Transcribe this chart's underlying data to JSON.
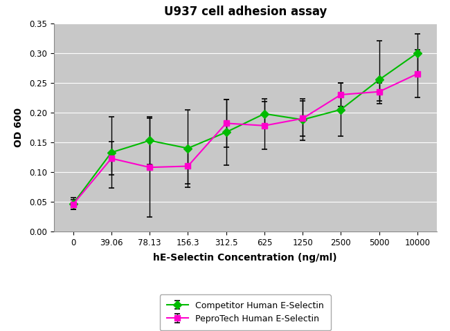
{
  "title": "U937 cell adhesion assay",
  "xlabel": "hE-Selectin Concentration (ng/ml)",
  "ylabel": "OD 600",
  "x_labels": [
    "0",
    "39.06",
    "78.13",
    "156.3",
    "312.5",
    "625",
    "1250",
    "2500",
    "5000",
    "10000"
  ],
  "x_values": [
    0,
    1,
    2,
    3,
    4,
    5,
    6,
    7,
    8,
    9
  ],
  "competitor": {
    "y": [
      0.047,
      0.133,
      0.153,
      0.14,
      0.167,
      0.198,
      0.188,
      0.205,
      0.255,
      0.3
    ],
    "yerr_up": [
      0.01,
      0.06,
      0.04,
      0.065,
      0.055,
      0.025,
      0.035,
      0.045,
      0.065,
      0.032
    ],
    "yerr_dn": [
      0.01,
      0.06,
      0.04,
      0.065,
      0.055,
      0.025,
      0.035,
      0.045,
      0.04,
      0.032
    ],
    "color": "#00bb00",
    "marker": "D",
    "markersize": 6,
    "label": "Competitor Human E-Selectin"
  },
  "peprotech": {
    "y": [
      0.046,
      0.123,
      0.108,
      0.11,
      0.182,
      0.178,
      0.19,
      0.23,
      0.235,
      0.265
    ],
    "yerr_up": [
      0.008,
      0.028,
      0.083,
      0.03,
      0.04,
      0.04,
      0.03,
      0.02,
      0.015,
      0.04
    ],
    "yerr_dn": [
      0.008,
      0.028,
      0.083,
      0.03,
      0.04,
      0.04,
      0.03,
      0.02,
      0.015,
      0.04
    ],
    "color": "#ff00cc",
    "marker": "s",
    "markersize": 6,
    "label": "PeproTech Human E-Selectin"
  },
  "ylim": [
    0,
    0.35
  ],
  "yticks": [
    0,
    0.05,
    0.1,
    0.15,
    0.2,
    0.25,
    0.3,
    0.35
  ],
  "fig_bg_color": "#ffffff",
  "plot_bg_color": "#c8c8c8",
  "grid_color": "#ffffff",
  "title_fontsize": 12,
  "axis_label_fontsize": 10,
  "tick_fontsize": 8.5,
  "legend_fontsize": 9
}
